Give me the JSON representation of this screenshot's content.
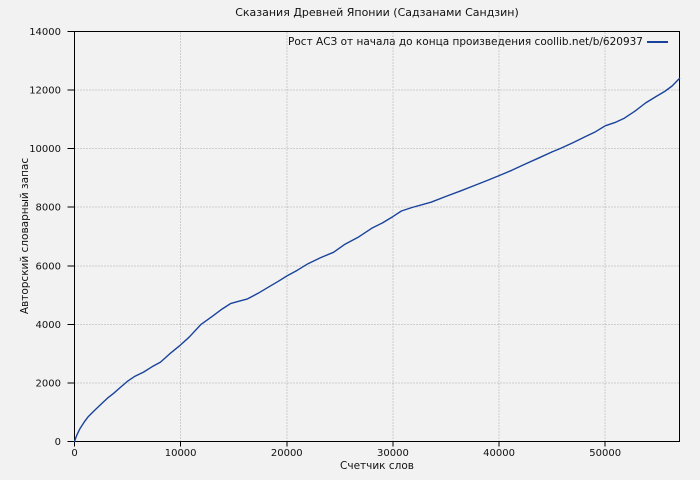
{
  "window": {
    "background": "#f2f2f2"
  },
  "colors": {
    "background": "#f2f2f2",
    "plot_border": "#000000",
    "grid": "#a9a9a9",
    "text": "#111111",
    "line": "#19439b"
  },
  "chart_data": {
    "type": "line",
    "title": "Сказания Древней Японии (Садзанами Сандзин)",
    "xlabel": "Счетчик слов",
    "ylabel": "Авторский словарный запас",
    "xlim": [
      0,
      57000
    ],
    "ylim": [
      0,
      14000
    ],
    "xticks": [
      0,
      10000,
      20000,
      30000,
      40000,
      50000
    ],
    "yticks": [
      0,
      2000,
      4000,
      6000,
      8000,
      10000,
      12000,
      14000
    ],
    "grid": true,
    "grid_style": "dotted",
    "legend_position": "top-right-inside",
    "series": [
      {
        "name": "Рост АСЗ от начала до конца произведения coollib.net/b/620937",
        "color": "#19439b",
        "points": [
          [
            0,
            0
          ],
          [
            200,
            200
          ],
          [
            500,
            430
          ],
          [
            900,
            660
          ],
          [
            1300,
            850
          ],
          [
            1900,
            1070
          ],
          [
            2500,
            1270
          ],
          [
            3100,
            1480
          ],
          [
            3700,
            1650
          ],
          [
            4300,
            1840
          ],
          [
            5000,
            2060
          ],
          [
            5700,
            2230
          ],
          [
            6500,
            2370
          ],
          [
            7300,
            2550
          ],
          [
            8100,
            2710
          ],
          [
            9000,
            3000
          ],
          [
            10000,
            3300
          ],
          [
            10800,
            3560
          ],
          [
            11900,
            3990
          ],
          [
            13000,
            4280
          ],
          [
            13900,
            4520
          ],
          [
            14700,
            4710
          ],
          [
            15500,
            4790
          ],
          [
            16300,
            4870
          ],
          [
            17300,
            5060
          ],
          [
            18400,
            5300
          ],
          [
            19200,
            5470
          ],
          [
            20000,
            5650
          ],
          [
            21000,
            5850
          ],
          [
            22000,
            6070
          ],
          [
            23200,
            6280
          ],
          [
            24400,
            6460
          ],
          [
            25500,
            6740
          ],
          [
            26700,
            6970
          ],
          [
            28000,
            7280
          ],
          [
            29000,
            7460
          ],
          [
            30000,
            7680
          ],
          [
            30800,
            7870
          ],
          [
            31800,
            7990
          ],
          [
            33600,
            8170
          ],
          [
            35000,
            8370
          ],
          [
            36400,
            8560
          ],
          [
            37800,
            8760
          ],
          [
            39000,
            8930
          ],
          [
            40000,
            9080
          ],
          [
            41200,
            9260
          ],
          [
            42500,
            9480
          ],
          [
            43800,
            9690
          ],
          [
            45000,
            9890
          ],
          [
            45800,
            10010
          ],
          [
            47000,
            10210
          ],
          [
            48200,
            10420
          ],
          [
            49100,
            10580
          ],
          [
            50000,
            10780
          ],
          [
            50900,
            10890
          ],
          [
            51800,
            11040
          ],
          [
            52800,
            11280
          ],
          [
            53800,
            11560
          ],
          [
            54800,
            11780
          ],
          [
            55600,
            11950
          ],
          [
            56300,
            12140
          ],
          [
            57000,
            12400
          ]
        ]
      }
    ]
  }
}
